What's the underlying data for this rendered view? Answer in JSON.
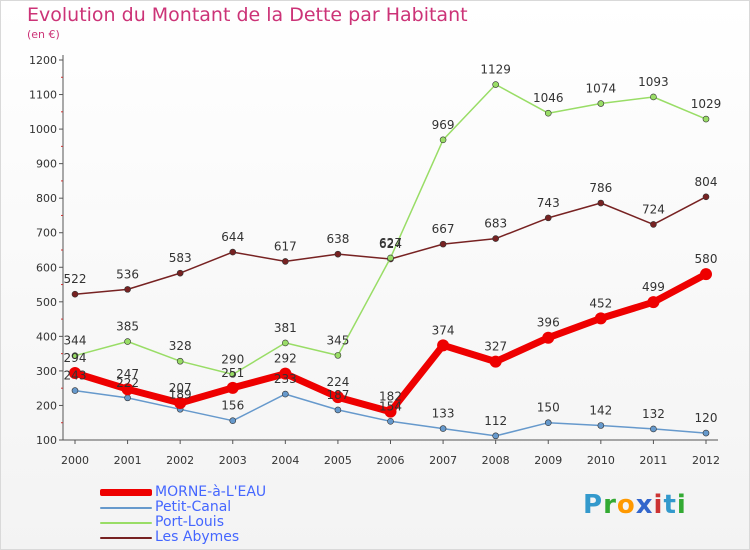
{
  "header": {
    "title": "Evolution du Montant de la Dette par Habitant",
    "subtitle": "(en €)"
  },
  "logo": {
    "letters": [
      "P",
      "r",
      "o",
      "x",
      "i",
      "t",
      "i"
    ],
    "colors": [
      "#3399cc",
      "#33aa33",
      "#ff9900",
      "#3366cc",
      "#cc3333",
      "#3399cc",
      "#33aa33"
    ]
  },
  "chart_data": {
    "type": "line",
    "title": "Evolution du Montant de la Dette par Habitant",
    "subtitle": "(en €)",
    "categories": [
      "2000",
      "2001",
      "2002",
      "2003",
      "2004",
      "2005",
      "2006",
      "2007",
      "2008",
      "2009",
      "2010",
      "2011",
      "2012"
    ],
    "ylim": [
      100,
      1200
    ],
    "yticks": [
      "100",
      "200",
      "300",
      "400",
      "500",
      "600",
      "700",
      "800",
      "900",
      "1000",
      "1100",
      "1200"
    ],
    "grid": false,
    "legend_position": "bottom-left",
    "series": [
      {
        "name": "MORNE-à-L'EAU",
        "color": "#ee0000",
        "values": [
          294,
          247,
          207,
          251,
          292,
          224,
          182,
          374,
          327,
          396,
          452,
          499,
          580
        ]
      },
      {
        "name": "Petit-Canal",
        "color": "#6699cc",
        "values": [
          243,
          222,
          189,
          156,
          233,
          187,
          154,
          133,
          112,
          150,
          142,
          132,
          120
        ]
      },
      {
        "name": "Port-Louis",
        "color": "#99dd66",
        "values": [
          344,
          385,
          328,
          290,
          381,
          345,
          627,
          969,
          1129,
          1046,
          1074,
          1093,
          1029
        ]
      },
      {
        "name": "Les Abymes",
        "color": "#772222",
        "values": [
          522,
          536,
          583,
          644,
          617,
          638,
          624,
          667,
          683,
          743,
          786,
          724,
          804
        ]
      }
    ]
  }
}
